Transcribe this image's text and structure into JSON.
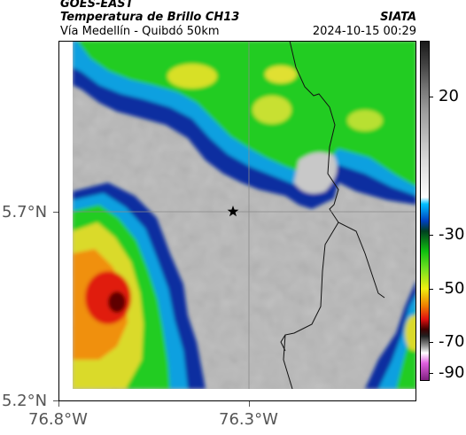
{
  "header": {
    "satellite": "GOES-EAST",
    "product": "Temperatura de Brillo CH13",
    "route": "Vía Medellín - Quibdó 50km",
    "agency": "SIATA",
    "timestamp": "2024-10-15 00:29"
  },
  "axes": {
    "y_labels": [
      "5.7°N",
      "5.2°N"
    ],
    "x_labels": [
      "76.8°W",
      "76.3°W"
    ]
  },
  "colorbar": {
    "labels": [
      "20",
      "-30",
      "-50",
      "-70",
      "-90"
    ]
  },
  "colors": {
    "warm": "#b4b4b4",
    "cold_blue": "#00a8e0",
    "deep_blue": "#002a8c",
    "green": "#1ed21e",
    "yellow": "#e6e628",
    "red": "#e61e0a"
  },
  "marker": "star-icon"
}
